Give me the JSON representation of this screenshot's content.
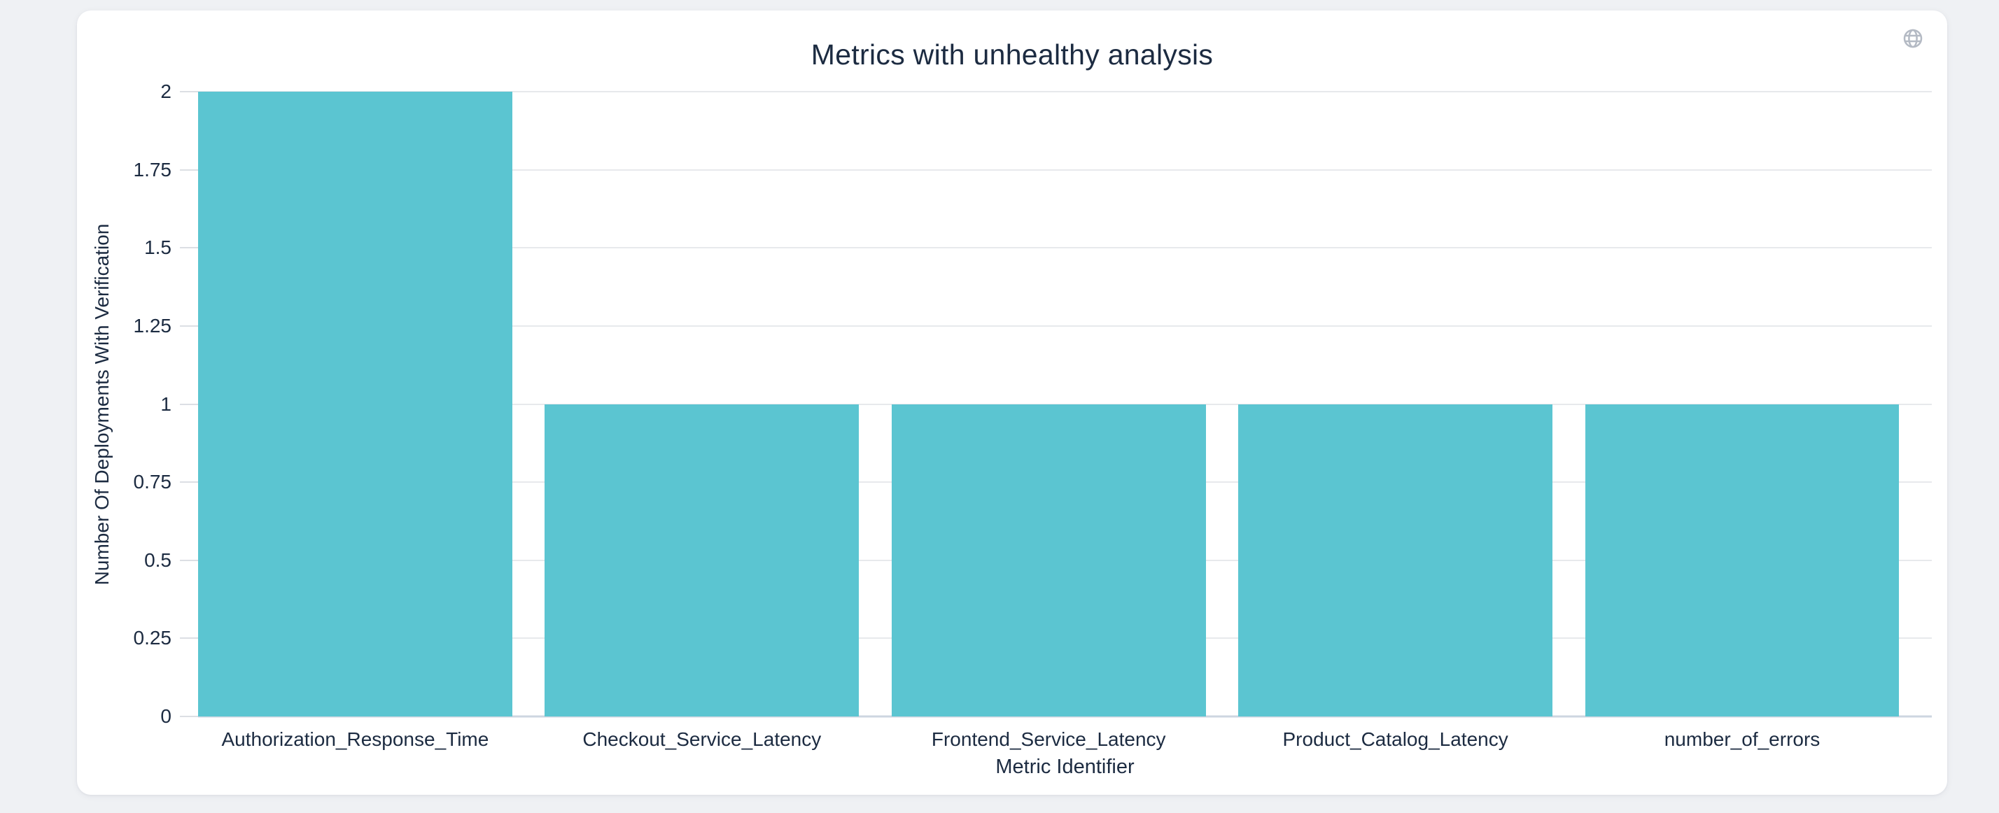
{
  "card": {
    "title": "Metrics with unhealthy analysis"
  },
  "icons": {
    "top_right": "globe-icon"
  },
  "chart_data": {
    "type": "bar",
    "title": "Metrics with unhealthy analysis",
    "categories": [
      "Authorization_Response_Time",
      "Checkout_Service_Latency",
      "Frontend_Service_Latency",
      "Product_Catalog_Latency",
      "number_of_errors"
    ],
    "values": [
      2,
      1,
      1,
      1,
      1
    ],
    "xlabel": "Metric Identifier",
    "ylabel": "Number Of Deployments With Verification",
    "ylim": [
      0,
      2
    ],
    "yticks": [
      0,
      0.25,
      0.5,
      0.75,
      1,
      1.25,
      1.5,
      1.75,
      2
    ],
    "ytick_labels": [
      "0",
      "0.25",
      "0.5",
      "0.75",
      "1",
      "1.25",
      "1.5",
      "1.75",
      "2"
    ],
    "grid": true,
    "legend": false,
    "bar_color": "#5bc5d1",
    "colors": {
      "text": "#1c2b41",
      "gridline": "#e7e9ec",
      "axis_line": "#cdd6e0",
      "tick": "#dcdfe4",
      "icon": "#b4bac4",
      "page_bg": "#eff1f4",
      "card_bg": "#ffffff"
    }
  }
}
